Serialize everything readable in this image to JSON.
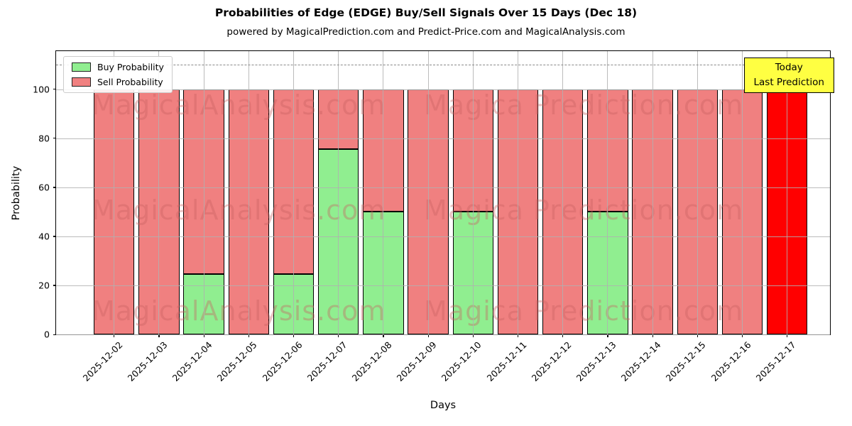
{
  "chart_data": {
    "type": "bar",
    "stacked": true,
    "title": "Probabilities of Edge (EDGE) Buy/Sell Signals Over 15 Days (Dec 18)",
    "subtitle": "powered by MagicalPrediction.com and Predict-Price.com and MagicalAnalysis.com",
    "xlabel": "Days",
    "ylabel": "Probability",
    "ylim": [
      0,
      115.5
    ],
    "yticks": [
      0,
      20,
      40,
      60,
      80,
      100
    ],
    "grid": true,
    "dashed_guideline_y": 110,
    "categories": [
      "2025-12-02",
      "2025-12-03",
      "2025-12-04",
      "2025-12-05",
      "2025-12-06",
      "2025-12-07",
      "2025-12-08",
      "2025-12-09",
      "2025-12-10",
      "2025-12-11",
      "2025-12-12",
      "2025-12-13",
      "2025-12-14",
      "2025-12-15",
      "2025-12-16",
      "2025-12-17"
    ],
    "series": [
      {
        "name": "Buy Probability",
        "color": "#90ee90",
        "values": [
          0,
          0,
          24.5,
          0,
          24.5,
          75.5,
          50,
          0,
          50,
          0,
          0,
          50,
          0,
          0,
          0,
          0
        ]
      },
      {
        "name": "Sell Probability",
        "color": "#f08080",
        "values": [
          100,
          100,
          75.5,
          100,
          75.5,
          24.5,
          50,
          100,
          50,
          100,
          100,
          50,
          100,
          100,
          100,
          100
        ]
      }
    ],
    "today_bar": {
      "category": "2025-12-17",
      "color": "#ff0000"
    },
    "legend": {
      "position": "top-left",
      "entries": [
        {
          "label": "Buy Probability",
          "color": "#90ee90"
        },
        {
          "label": "Sell Probability",
          "color": "#f08080"
        }
      ]
    },
    "annotation_box": {
      "lines": [
        "Today",
        "Last Prediction"
      ],
      "bg_color": "#ffff42",
      "border_color": "#000000",
      "position": "top-right"
    },
    "watermarks": {
      "left_text": "MagicalAnalysis.com",
      "right_text": "Magica Prediction.com",
      "rows": 3,
      "color": "#c76262"
    },
    "colors": {
      "bar_edge": "#000000",
      "grid": "#b0b0b0",
      "dashed_line": "#8a8a8a"
    }
  }
}
